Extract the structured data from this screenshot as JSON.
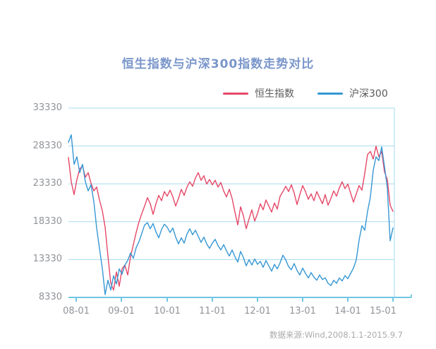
{
  "title": "恒生指数与沪深300指数走势对比",
  "source_note": "数据来源:Wind,2008.1.1-2015.9.7",
  "colors": {
    "title": "#7a96ca",
    "grid": "#a5dbee",
    "axis": "#70c6e5",
    "tick_text": "#909399",
    "legend_text": "#595959",
    "source_text": "#aaaaaa",
    "hsi": "#e54868",
    "csi300": "#3697d3"
  },
  "legend": [
    {
      "label": "恒生指数",
      "color": "#e54868"
    },
    {
      "label": "沪深300",
      "color": "#3697d3"
    }
  ],
  "chart_data": {
    "type": "line",
    "title": "恒生指数与沪深300指数走势对比",
    "xlabel": "",
    "ylabel": "",
    "grid": true,
    "legend_position": "top",
    "ylim": [
      8330,
      33330
    ],
    "y_tick_labels": [
      "33330",
      "28330",
      "23330",
      "18330",
      "13330",
      "8330"
    ],
    "x_tick_labels": [
      "08-01",
      "09-01",
      "10-01",
      "11-01",
      "12-01",
      "13-01",
      "14-01",
      "15-01"
    ],
    "x_range": "2008-01 to 2015-09, sampled at equal intervals",
    "series": [
      {
        "name": "恒生指数",
        "color": "#e54868",
        "values": [
          26800,
          23600,
          21900,
          23900,
          25300,
          25700,
          24200,
          24800,
          23400,
          22400,
          22900,
          21200,
          19800,
          17600,
          13800,
          10200,
          9300,
          11700,
          9800,
          12100,
          12600,
          11300,
          13700,
          15300,
          16900,
          18300,
          19400,
          20400,
          21500,
          20700,
          19300,
          20700,
          21800,
          21100,
          22300,
          21700,
          22500,
          21600,
          20400,
          21400,
          22600,
          21800,
          22900,
          23600,
          23000,
          24100,
          24800,
          23800,
          24400,
          23300,
          23900,
          23200,
          23800,
          22900,
          23500,
          22400,
          21600,
          22600,
          21400,
          19600,
          17900,
          20300,
          19100,
          17400,
          18700,
          19900,
          18400,
          19400,
          20700,
          19900,
          21200,
          20400,
          19600,
          20800,
          20000,
          21700,
          22300,
          23000,
          22300,
          23200,
          22100,
          20600,
          21900,
          23100,
          22300,
          21300,
          22000,
          21100,
          22300,
          21500,
          20700,
          21900,
          20500,
          21400,
          22400,
          21700,
          22800,
          23600,
          22700,
          23300,
          22100,
          20900,
          22000,
          23100,
          22500,
          24700,
          27200,
          27600,
          26600,
          28300,
          26900,
          27600,
          24900,
          23900,
          20500,
          19700
        ]
      },
      {
        "name": "沪深300",
        "color": "#3697d3",
        "values": [
          28800,
          29800,
          25900,
          26900,
          24800,
          25900,
          23600,
          22400,
          23200,
          21000,
          17500,
          14800,
          12200,
          8700,
          10600,
          9300,
          11200,
          10100,
          12100,
          11400,
          12600,
          13200,
          14200,
          13500,
          14900,
          15700,
          16800,
          17900,
          18200,
          17400,
          18100,
          17000,
          16200,
          17300,
          18000,
          17600,
          16900,
          17500,
          16300,
          15400,
          16200,
          15500,
          16700,
          17400,
          16600,
          17200,
          16400,
          15600,
          16300,
          15400,
          14800,
          15500,
          16000,
          15200,
          14600,
          15300,
          14500,
          13800,
          14600,
          13700,
          13000,
          14400,
          13600,
          12500,
          13300,
          12600,
          13400,
          12700,
          13100,
          12300,
          13200,
          12500,
          11800,
          12700,
          12100,
          12900,
          13900,
          13300,
          12400,
          12000,
          12800,
          11900,
          11300,
          12200,
          11500,
          10900,
          11600,
          11000,
          10600,
          11300,
          10700,
          10900,
          10200,
          9900,
          10600,
          10200,
          10900,
          10500,
          11200,
          10800,
          11500,
          12200,
          13300,
          15900,
          17800,
          17200,
          19700,
          21600,
          25100,
          26900,
          26400,
          28200,
          25600,
          22800,
          15800,
          17500
        ]
      }
    ]
  }
}
